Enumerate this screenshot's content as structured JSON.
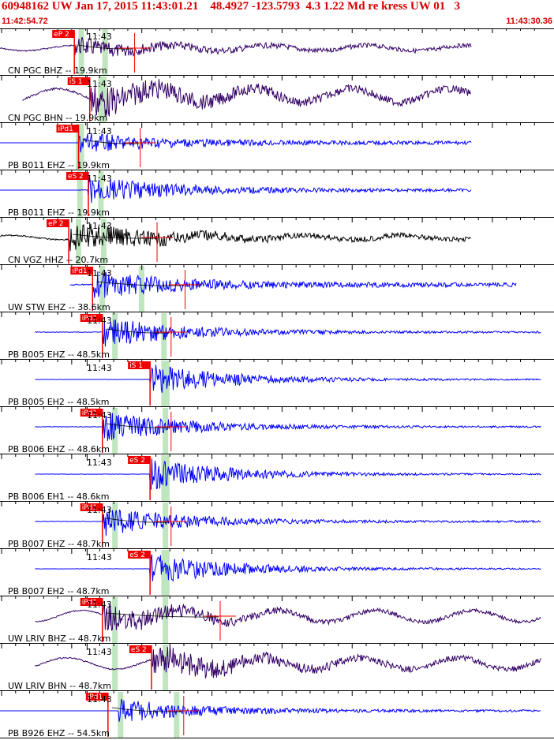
{
  "header": {
    "title": "60948162 UW Jan 17, 2015 11:43:01.21    48.4927 -123.5793  4.3 1.22 Md re kress UW 01   3",
    "start_time": "11:42:54.72",
    "end_time": "11:43:30.36"
  },
  "minute_label": "11:43",
  "colors": {
    "blue_trace": "#0000ff",
    "dark_trace": "#330066",
    "black_trace": "#000000",
    "pick_red": "#ee0000",
    "green_band": "#bfe6bf",
    "header_red": "#d40000"
  },
  "traces": [
    {
      "label": "CN PGC BHZ -- 19.9km",
      "pick": "eP 2",
      "pick_t": 5.3,
      "green_t": [
        5.6,
        7.3
      ],
      "color": "dark",
      "start_t": 0.0,
      "end_t": 33.6,
      "flat_until": 0,
      "amp": 0.12,
      "burst": 0.45,
      "long": 0.25,
      "red_cross_t": 9.6
    },
    {
      "label": "CN PGC BHN -- 19.9km",
      "pick": "iS 1",
      "pick_t": 6.4,
      "green_t": [
        7.0,
        7.2
      ],
      "color": "dark",
      "start_t": 1.6,
      "end_t": 33.6,
      "flat_until": 0,
      "amp": 0.2,
      "burst": 0.85,
      "long": 0.65,
      "red_cross_t": null
    },
    {
      "label": "PB B011 EHZ -- 19.9km",
      "pick": "iPd1",
      "pick_t": 5.6,
      "green_t": [
        5.4,
        5.6
      ],
      "color": "blue",
      "start_t": 0.0,
      "end_t": 33.6,
      "flat_until": 5.6,
      "amp": 0.1,
      "burst": 0.55,
      "long": 0.0,
      "red_cross_t": 10.0
    },
    {
      "label": "PB B011 EHZ -- 19.9km",
      "pick": "eS 2",
      "pick_t": 6.3,
      "green_t": [
        5.5,
        7.0
      ],
      "color": "blue",
      "start_t": 0.0,
      "end_t": 33.6,
      "flat_until": 5.6,
      "amp": 0.08,
      "burst": 0.75,
      "long": 0.0,
      "red_cross_t": null
    },
    {
      "label": "CN VGZ HHZ -- 20.7km",
      "pick": "eP 2",
      "pick_t": 4.9,
      "green_t": [
        5.4,
        7.2
      ],
      "color": "black",
      "start_t": 0.0,
      "end_t": 33.6,
      "flat_until": 0,
      "amp": 0.14,
      "burst": 0.8,
      "long": 0.2,
      "red_cross_t": 11.2
    },
    {
      "label": "UW STW EHZ -- 38.6km",
      "pick": "iPd1",
      "pick_t": 6.6,
      "green_t": [
        7.1,
        9.9
      ],
      "color": "blue",
      "start_t": 5.0,
      "end_t": 36.8,
      "flat_until": 0,
      "amp": 0.12,
      "burst": 0.75,
      "long": 0.0,
      "red_cross_t": 13.2
    },
    {
      "label": "PB B005 EHZ -- 48.5km",
      "pick": "iPd1",
      "pick_t": 7.3,
      "green_t": [
        8.0,
        11.5
      ],
      "color": "blue",
      "start_t": 2.5,
      "end_t": 38.6,
      "flat_until": 0,
      "amp": 0.05,
      "burst": 0.85,
      "long": 0.0,
      "red_cross_t": 12.2
    },
    {
      "label": "PB B005 EH2 -- 48.5km",
      "pick": "iS 1",
      "pick_t": 10.7,
      "green_t": [
        11.5,
        11.7
      ],
      "color": "blue",
      "start_t": 2.5,
      "end_t": 38.6,
      "flat_until": 0,
      "amp": 0.03,
      "burst": 0.9,
      "long": 0.0,
      "red_cross_t": null
    },
    {
      "label": "PB B006 EHZ -- 48.6km",
      "pick": "iPd1",
      "pick_t": 7.3,
      "green_t": [
        8.0,
        11.6
      ],
      "color": "blue",
      "start_t": 2.5,
      "end_t": 38.6,
      "flat_until": 0,
      "amp": 0.05,
      "burst": 0.85,
      "long": 0.0,
      "red_cross_t": 12.2
    },
    {
      "label": "PB B006 EH1 -- 48.6km",
      "pick": "eS 2",
      "pick_t": 10.7,
      "green_t": [
        11.5,
        11.7
      ],
      "color": "blue",
      "start_t": 2.5,
      "end_t": 38.6,
      "flat_until": 0,
      "amp": 0.03,
      "burst": 0.9,
      "long": 0.0,
      "red_cross_t": null
    },
    {
      "label": "PB B007 EHZ -- 48.7km",
      "pick": "iPd1",
      "pick_t": 7.3,
      "green_t": [
        8.0,
        11.6
      ],
      "color": "blue",
      "start_t": 2.5,
      "end_t": 38.6,
      "flat_until": 0,
      "amp": 0.05,
      "burst": 0.85,
      "long": 0.0,
      "red_cross_t": 12.2
    },
    {
      "label": "PB B007 EH2 -- 48.7km",
      "pick": "eS 2",
      "pick_t": 10.7,
      "green_t": [
        11.5,
        11.7
      ],
      "color": "blue",
      "start_t": 2.5,
      "end_t": 38.6,
      "flat_until": 0,
      "amp": 0.03,
      "burst": 0.9,
      "long": 0.0,
      "red_cross_t": null
    },
    {
      "label": "UW LRIV BHZ -- 48.7km",
      "pick": "iPd1",
      "pick_t": 7.3,
      "green_t": [
        8.0,
        11.6
      ],
      "color": "dark",
      "start_t": 2.5,
      "end_t": 38.6,
      "flat_until": 0,
      "amp": 0.1,
      "burst": 0.75,
      "long": 0.55,
      "red_cross_t": 15.7
    },
    {
      "label": "UW LRIV BHN -- 48.7km",
      "pick": "eS 2",
      "pick_t": 10.8,
      "green_t": [
        8.0,
        11.6
      ],
      "color": "dark",
      "start_t": 2.5,
      "end_t": 38.6,
      "flat_until": 0,
      "amp": 0.14,
      "burst": 0.9,
      "long": 0.55,
      "red_cross_t": null
    },
    {
      "label": "PB B926 EHZ -- 54.5km",
      "pick": "iPd1",
      "pick_t": 7.7,
      "green_t": [
        8.4,
        12.4
      ],
      "color": "blue",
      "start_t": 0.0,
      "end_t": 38.6,
      "flat_until": 8.4,
      "amp": 0.06,
      "burst": 0.75,
      "long": 0.0,
      "red_cross_t": 13.1
    }
  ]
}
